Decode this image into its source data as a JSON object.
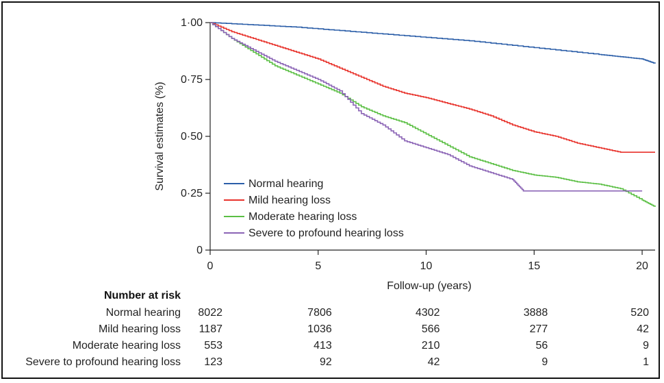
{
  "chart_data": {
    "type": "line",
    "title": "",
    "xlabel": "Follow-up (years)",
    "ylabel": "Survival estimates (%)",
    "xlim": [
      0,
      20.6
    ],
    "ylim": [
      0,
      1.0
    ],
    "x_ticks": [
      0,
      5,
      10,
      15,
      20
    ],
    "x_tick_labels": [
      "0",
      "5",
      "10",
      "15",
      "20"
    ],
    "y_ticks": [
      0,
      0.25,
      0.5,
      0.75,
      1.0
    ],
    "y_tick_labels": [
      "0",
      "0·25",
      "0·50",
      "0·75",
      "1·00"
    ],
    "legend_position": "bottom-left",
    "series": [
      {
        "name": "Normal hearing",
        "color": "#2b5ea8",
        "x": [
          0,
          2,
          4,
          6,
          8,
          10,
          12,
          14,
          16,
          18,
          19,
          20,
          20.6
        ],
        "y": [
          1.0,
          0.99,
          0.98,
          0.965,
          0.95,
          0.935,
          0.92,
          0.9,
          0.88,
          0.86,
          0.85,
          0.84,
          0.82
        ]
      },
      {
        "name": "Mild hearing loss",
        "color": "#e8322b",
        "x": [
          0,
          1,
          2,
          3,
          4,
          5,
          6,
          7,
          8,
          9,
          10,
          11,
          12,
          13,
          14,
          15,
          16,
          17,
          18,
          19,
          20,
          20.6
        ],
        "y": [
          1.0,
          0.96,
          0.93,
          0.9,
          0.87,
          0.84,
          0.8,
          0.76,
          0.72,
          0.69,
          0.67,
          0.645,
          0.62,
          0.59,
          0.55,
          0.52,
          0.5,
          0.47,
          0.45,
          0.43,
          0.43,
          0.43
        ]
      },
      {
        "name": "Moderate hearing loss",
        "color": "#5bbf44",
        "x": [
          0,
          1,
          2,
          3,
          4,
          5,
          6,
          7,
          8,
          9,
          10,
          11,
          12,
          13,
          14,
          15,
          16,
          17,
          18,
          19,
          20,
          20.6
        ],
        "y": [
          1.0,
          0.93,
          0.87,
          0.81,
          0.77,
          0.73,
          0.69,
          0.63,
          0.59,
          0.56,
          0.51,
          0.46,
          0.41,
          0.38,
          0.35,
          0.33,
          0.32,
          0.3,
          0.29,
          0.27,
          0.22,
          0.19
        ]
      },
      {
        "name": "Severe to profound hearing loss",
        "color": "#8a63b5",
        "x": [
          0,
          1,
          2,
          3,
          4,
          5,
          6,
          7,
          8,
          9,
          10,
          11,
          12,
          13,
          14,
          14.5,
          15,
          16,
          17,
          18,
          19,
          20
        ],
        "y": [
          1.0,
          0.93,
          0.88,
          0.83,
          0.79,
          0.75,
          0.7,
          0.6,
          0.55,
          0.48,
          0.45,
          0.42,
          0.37,
          0.34,
          0.31,
          0.26,
          0.26,
          0.26,
          0.26,
          0.26,
          0.26,
          0.26
        ]
      }
    ]
  },
  "risk_table": {
    "title": "Number at risk",
    "years": [
      0,
      5,
      10,
      15,
      20
    ],
    "rows": [
      {
        "label": "Normal hearing",
        "values": [
          "8022",
          "7806",
          "4302",
          "3888",
          "520"
        ]
      },
      {
        "label": "Mild hearing loss",
        "values": [
          "1187",
          "1036",
          "566",
          "277",
          "42"
        ]
      },
      {
        "label": "Moderate hearing loss",
        "values": [
          "553",
          "413",
          "210",
          "56",
          "9"
        ]
      },
      {
        "label": "Severe to profound hearing loss",
        "values": [
          "123",
          "92",
          "42",
          "9",
          "1"
        ]
      }
    ]
  }
}
